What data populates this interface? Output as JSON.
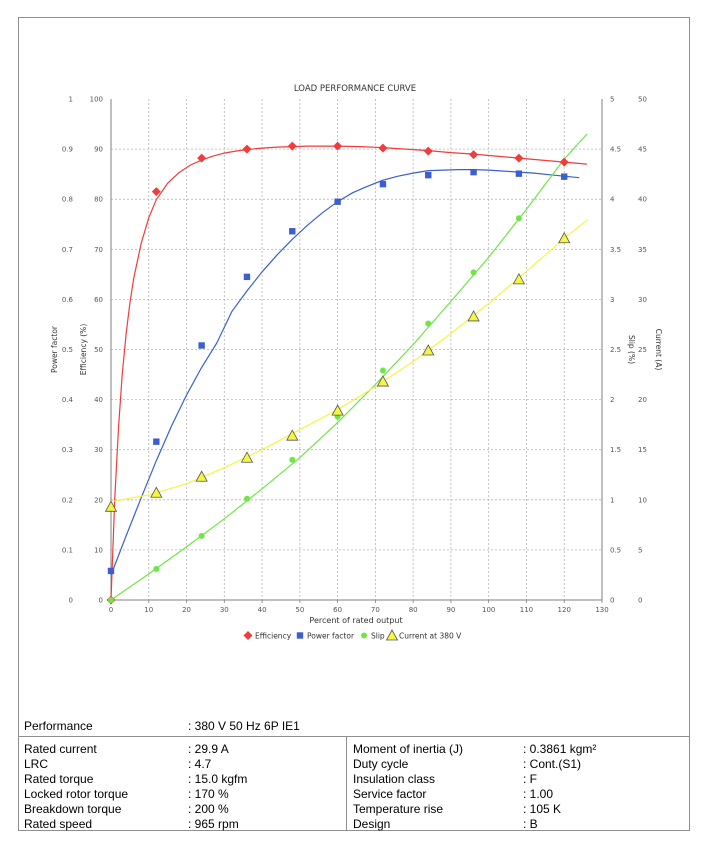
{
  "chart_data": {
    "type": "line",
    "title": "LOAD PERFORMANCE CURVE",
    "xlabel": "Percent of rated output",
    "xlim": [
      0,
      130
    ],
    "xticks": [
      "0",
      "10",
      "20",
      "30",
      "40",
      "50",
      "60",
      "70",
      "80",
      "90",
      "100",
      "110",
      "120",
      "130"
    ],
    "grid": true,
    "legend_position": "bottom",
    "axes": [
      {
        "id": "pf",
        "label": "Power factor",
        "side": "left",
        "range": [
          0,
          1
        ],
        "ticks": [
          "0",
          "0.1",
          "0.2",
          "0.3",
          "0.4",
          "0.5",
          "0.6",
          "0.7",
          "0.8",
          "0.9",
          "1"
        ]
      },
      {
        "id": "eff",
        "label": "Efficiency (%)",
        "side": "left",
        "range": [
          0,
          100
        ],
        "ticks": [
          "0",
          "10",
          "20",
          "30",
          "40",
          "50",
          "60",
          "70",
          "80",
          "90",
          "100"
        ]
      },
      {
        "id": "slip",
        "label": "Slip (%)",
        "side": "right",
        "range": [
          0,
          5
        ],
        "ticks": [
          "0",
          "0.5",
          "1",
          "1.5",
          "2",
          "2.5",
          "3",
          "3.5",
          "4",
          "4.5",
          "5"
        ]
      },
      {
        "id": "cur",
        "label": "Current (A)",
        "side": "right",
        "range": [
          0,
          50
        ],
        "ticks": [
          "0",
          "5",
          "10",
          "15",
          "20",
          "25",
          "30",
          "35",
          "40",
          "45",
          "50"
        ]
      }
    ],
    "series": [
      {
        "name": "Efficiency",
        "axis": "eff",
        "color": "#f23b3b",
        "marker": "diamond",
        "x": [
          0,
          12,
          24,
          36,
          48,
          60,
          72,
          84,
          96,
          108,
          120
        ],
        "y": [
          0,
          81.5,
          88.2,
          90.0,
          90.6,
          90.6,
          90.2,
          89.6,
          88.9,
          88.2,
          87.4
        ],
        "curve_x": [
          0,
          1,
          2,
          3,
          4,
          5,
          6,
          8,
          10,
          12,
          15,
          18,
          21,
          24,
          27,
          30,
          33,
          36,
          40,
          44,
          48,
          52,
          56,
          60,
          66,
          72,
          78,
          84,
          90,
          96,
          102,
          108,
          114,
          120,
          126
        ],
        "curve_y": [
          0,
          20.5,
          34.7,
          45.2,
          53.1,
          59.3,
          64.2,
          71.2,
          76.3,
          79.9,
          83.2,
          85.3,
          86.8,
          87.8,
          88.6,
          89.2,
          89.6,
          89.9,
          90.2,
          90.4,
          90.5,
          90.6,
          90.6,
          90.6,
          90.5,
          90.3,
          90.0,
          89.7,
          89.3,
          89.0,
          88.6,
          88.2,
          87.8,
          87.4,
          87.0
        ]
      },
      {
        "name": "Power factor",
        "axis": "pf",
        "color": "#3b5fcc",
        "marker": "square",
        "x": [
          0,
          12,
          24,
          36,
          48,
          60,
          72,
          84,
          96,
          108,
          120
        ],
        "y": [
          0.058,
          0.316,
          0.508,
          0.645,
          0.736,
          0.795,
          0.83,
          0.848,
          0.854,
          0.851,
          0.845
        ],
        "curve_x": [
          0,
          4,
          8,
          12,
          16,
          20,
          24,
          28,
          32,
          36,
          40,
          44,
          48,
          52,
          56,
          60,
          64,
          68,
          72,
          76,
          80,
          84,
          88,
          92,
          96,
          100,
          104,
          108,
          112,
          116,
          120,
          124
        ],
        "curve_y": [
          0.05,
          0.128,
          0.204,
          0.278,
          0.347,
          0.409,
          0.464,
          0.513,
          0.576,
          0.617,
          0.655,
          0.689,
          0.72,
          0.748,
          0.773,
          0.795,
          0.813,
          0.826,
          0.838,
          0.846,
          0.852,
          0.857,
          0.858,
          0.859,
          0.859,
          0.858,
          0.856,
          0.854,
          0.852,
          0.849,
          0.846,
          0.843
        ]
      },
      {
        "name": "Slip",
        "axis": "slip",
        "color": "#6ee645",
        "marker": "circle",
        "x": [
          0,
          12,
          24,
          36,
          48,
          60,
          72,
          84,
          96,
          108
        ],
        "y": [
          0,
          0.31,
          0.64,
          1.01,
          1.4,
          1.83,
          2.29,
          2.76,
          3.27,
          3.81
        ],
        "curve_x": [
          0,
          10,
          20,
          30,
          40,
          50,
          60,
          70,
          80,
          90,
          100,
          110,
          120,
          126
        ],
        "curve_y": [
          0,
          0.26,
          0.53,
          0.81,
          1.11,
          1.42,
          1.77,
          2.15,
          2.55,
          2.98,
          3.42,
          3.9,
          4.4,
          4.65
        ]
      },
      {
        "name": "Current at 380 V",
        "axis": "cur",
        "color": "#f5f542",
        "marker": "triangle",
        "x": [
          0,
          12,
          24,
          36,
          48,
          60,
          72,
          84,
          96,
          108,
          120
        ],
        "y": [
          9.3,
          10.7,
          12.3,
          14.2,
          16.4,
          18.9,
          21.8,
          24.9,
          28.3,
          32.0,
          36.1
        ],
        "curve_x": [
          0,
          10,
          20,
          30,
          40,
          50,
          60,
          70,
          80,
          90,
          100,
          110,
          120,
          126
        ],
        "curve_y": [
          9.8,
          10.5,
          11.6,
          13.2,
          15.0,
          17.0,
          19.0,
          21.3,
          23.8,
          26.6,
          29.6,
          32.8,
          36.1,
          37.9
        ]
      }
    ]
  },
  "specs": {
    "header": {
      "label": "Performance",
      "value": ": 380 V 50 Hz 6P IE1"
    },
    "left": [
      {
        "label": "Rated current",
        "value": ": 29.9 A"
      },
      {
        "label": "LRC",
        "value": ": 4.7"
      },
      {
        "label": "Rated torque",
        "value": ": 15.0 kgfm"
      },
      {
        "label": "Locked rotor torque",
        "value": ": 170 %"
      },
      {
        "label": "Breakdown torque",
        "value": ": 200 %"
      },
      {
        "label": "Rated speed",
        "value": ": 965 rpm"
      }
    ],
    "right": [
      {
        "label": "Moment of inertia (J)",
        "value": ": 0.3861 kgm²"
      },
      {
        "label": "Duty cycle",
        "value": ": Cont.(S1)"
      },
      {
        "label": "Insulation class",
        "value": ": F"
      },
      {
        "label": "Service factor",
        "value": ": 1.00"
      },
      {
        "label": "Temperature rise",
        "value": ": 105 K"
      },
      {
        "label": "Design",
        "value": ": B"
      }
    ]
  }
}
